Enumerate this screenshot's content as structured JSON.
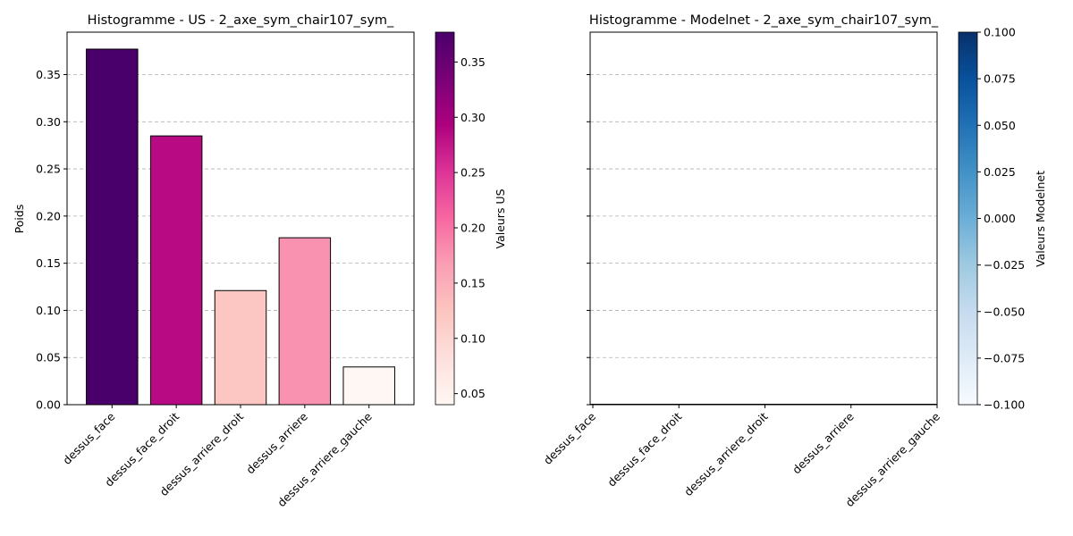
{
  "chart_data": [
    {
      "type": "bar",
      "title": "Histogramme - US - 2_axe_sym_chair107_sym_",
      "categories": [
        "dessus_face",
        "dessus_face_droit",
        "dessus_arriere_droit",
        "dessus_arriere",
        "dessus_arriere_gauche"
      ],
      "values": [
        0.377,
        0.285,
        0.121,
        0.177,
        0.04
      ],
      "xlabel": "",
      "ylabel": "Poids",
      "ylim": [
        0,
        0.395
      ],
      "yticks": [
        "0.00",
        "0.05",
        "0.10",
        "0.15",
        "0.20",
        "0.25",
        "0.30",
        "0.35"
      ],
      "grid": "y-dashed",
      "colormap": "RdPu",
      "colorbar": {
        "label": "Valeurs US",
        "range": [
          0.04,
          0.377
        ],
        "ticks": [
          "0.05",
          "0.10",
          "0.15",
          "0.20",
          "0.25",
          "0.30",
          "0.35"
        ],
        "colors": [
          "#fff7f3",
          "#fde0dd",
          "#fcc5c0",
          "#fa9fb5",
          "#f768a1",
          "#dd3497",
          "#ae017e",
          "#7a0177",
          "#49006a"
        ]
      }
    },
    {
      "type": "bar",
      "title": "Histogramme - Modelnet - 2_axe_sym_chair107_sym_",
      "categories": [
        "dessus_face",
        "dessus_face_droit",
        "dessus_arriere_droit",
        "dessus_arriere",
        "dessus_arriere_gauche"
      ],
      "values": [
        0,
        0,
        0,
        0,
        0
      ],
      "xlabel": "",
      "ylabel": "",
      "ylim": [
        0,
        0.395
      ],
      "grid": "y-dashed",
      "colormap": "Blues",
      "colorbar": {
        "label": "Valeurs Modelnet",
        "range": [
          -0.1,
          0.1
        ],
        "ticks": [
          "−0.100",
          "−0.075",
          "−0.050",
          "−0.025",
          "0.000",
          "0.025",
          "0.050",
          "0.075",
          "0.100"
        ],
        "colors": [
          "#f7fbff",
          "#deebf7",
          "#c6dbef",
          "#9ecae1",
          "#6baed6",
          "#4292c6",
          "#2171b5",
          "#08519c",
          "#08306b"
        ]
      }
    }
  ]
}
